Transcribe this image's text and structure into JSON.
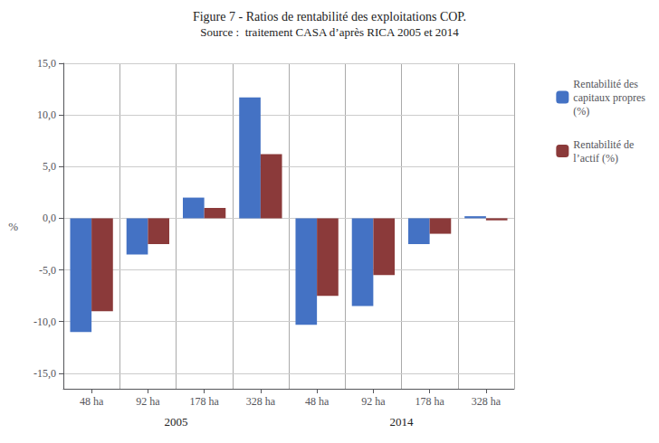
{
  "chart_data": {
    "type": "bar",
    "title": "Figure 7 - Ratios de rentabilité des exploitations COP.",
    "subtitle": "Source :  traitement CASA d’après RICA 2005 et 2014",
    "ylabel": "%",
    "categories": [
      "48 ha",
      "92 ha",
      "178 ha",
      "328 ha",
      "48 ha",
      "92 ha",
      "178 ha",
      "328 ha"
    ],
    "annotations": [
      "2005",
      "2014"
    ],
    "series": [
      {
        "name": "Rentabilité des\ncapitaux propres\n(%)",
        "color": "#4472C4",
        "values": [
          -11.0,
          -3.5,
          2.0,
          11.7,
          -10.3,
          -8.5,
          -2.5,
          0.2
        ]
      },
      {
        "name": "Rentabilité de\nl’actif (%)",
        "color": "#8B3A3A",
        "values": [
          -9.0,
          -2.5,
          1.0,
          6.2,
          -7.5,
          -5.5,
          -1.5,
          -0.2
        ]
      }
    ],
    "ylim": [
      -16.5,
      15.0
    ],
    "yticks": [
      {
        "value": -15.0,
        "label": "-15,0"
      },
      {
        "value": -10.0,
        "label": "-10,0"
      },
      {
        "value": -5.0,
        "label": "-5,0"
      },
      {
        "value": 0.0,
        "label": "0,0"
      },
      {
        "value": 5.0,
        "label": "5,0"
      },
      {
        "value": 10.0,
        "label": "10,0"
      },
      {
        "value": 15.0,
        "label": "15,0"
      }
    ],
    "grid": true,
    "legend": "right"
  }
}
